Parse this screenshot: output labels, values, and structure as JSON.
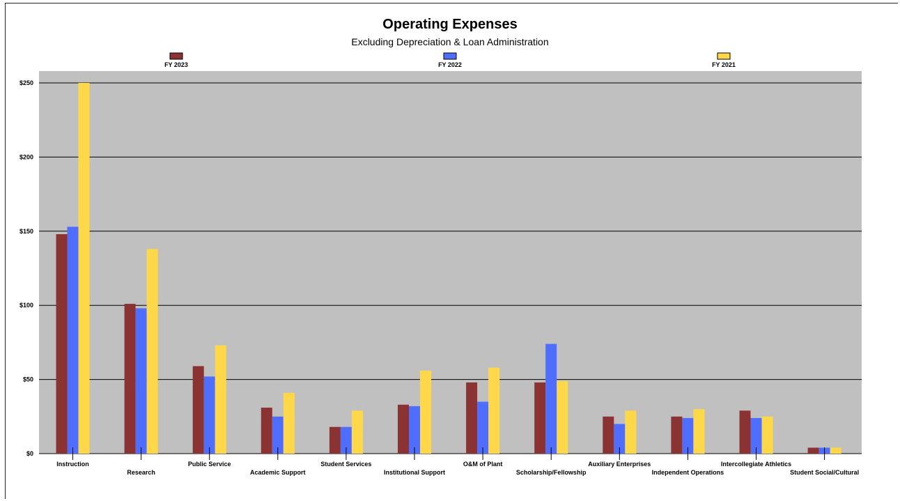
{
  "chart_data": {
    "type": "bar",
    "title": "Operating Expenses",
    "subtitle": "Excluding Depreciation & Loan Administration",
    "categories": [
      "Instruction",
      "Research",
      "Public Service",
      "Academic Support",
      "Student Services",
      "Institutional Support",
      "O&M of Plant",
      "Scholarship/Fellowship",
      "Auxiliary Enterprises",
      "Independent Operations",
      "Intercollegiate Athletics",
      "Student Social/Cultural"
    ],
    "series": [
      {
        "name": "FY 2023",
        "color": "#8B3333",
        "values": [
          148,
          101,
          59,
          31,
          18,
          33,
          48,
          48,
          25,
          25,
          29,
          4
        ]
      },
      {
        "name": "FY 2022",
        "color": "#4F6EFF",
        "values": [
          153,
          98,
          52,
          25,
          18,
          32,
          35,
          74,
          20,
          24,
          24,
          4
        ]
      },
      {
        "name": "FY 2021",
        "color": "#FFD84A",
        "values": [
          250,
          138,
          73,
          41,
          29,
          56,
          58,
          49,
          29,
          30,
          25,
          4
        ]
      }
    ],
    "ylim": [
      0,
      250
    ],
    "yticks": [
      0,
      50,
      100,
      150,
      200,
      250
    ],
    "ytick_labels": [
      "$0",
      "$50",
      "$100",
      "$150",
      "$200",
      "$250"
    ],
    "xlabel": "",
    "ylabel": "",
    "grid": true,
    "legend_position": "top",
    "plot_background": "#C0C0C0"
  }
}
